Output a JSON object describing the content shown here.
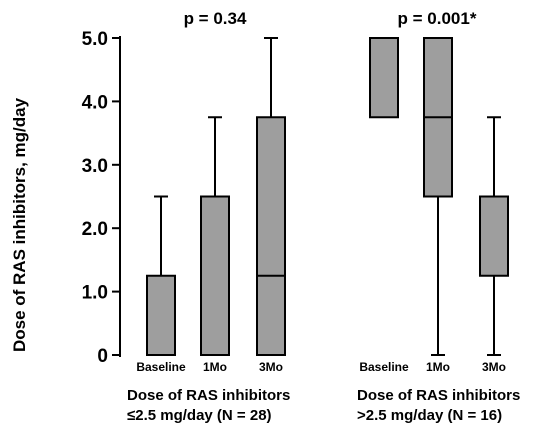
{
  "chart_data": {
    "type": "boxplot",
    "ylabel": "Dose of RAS inhibitors, mg/day",
    "ylim": [
      0,
      5
    ],
    "yticks": [
      {
        "value": 0,
        "label": "0"
      },
      {
        "value": 1,
        "label": "1.0"
      },
      {
        "value": 2,
        "label": "2.0"
      },
      {
        "value": 3,
        "label": "3.0"
      },
      {
        "value": 4,
        "label": "4.0"
      },
      {
        "value": 5,
        "label": "5.0"
      }
    ],
    "box_color": "#9e9e9e",
    "groups": [
      {
        "label_line1": "Dose of RAS inhibitors",
        "label_line2": "≤2.5 mg/day (N = 28)",
        "pvalue": "p = 0.34",
        "boxes": [
          {
            "category": "Baseline",
            "min": 0,
            "q1": 0,
            "median": 0,
            "q3": 1.25,
            "max": 2.5
          },
          {
            "category": "1Mo",
            "min": 0,
            "q1": 0,
            "median": 0,
            "q3": 2.5,
            "max": 3.75
          },
          {
            "category": "3Mo",
            "min": 0,
            "q1": 0,
            "median": 1.25,
            "q3": 3.75,
            "max": 5.0
          }
        ]
      },
      {
        "label_line1": "Dose of RAS inhibitors",
        "label_line2": ">2.5 mg/day (N = 16)",
        "pvalue": "p = 0.001*",
        "boxes": [
          {
            "category": "Baseline",
            "min": 3.75,
            "q1": 3.75,
            "median": 5.0,
            "q3": 5.0,
            "max": 5.0
          },
          {
            "category": "1Mo",
            "min": 0,
            "q1": 2.5,
            "median": 3.75,
            "q3": 5.0,
            "max": 5.0
          },
          {
            "category": "3Mo",
            "min": 0,
            "q1": 1.25,
            "median": 2.5,
            "q3": 2.5,
            "max": 3.75
          }
        ]
      }
    ]
  }
}
